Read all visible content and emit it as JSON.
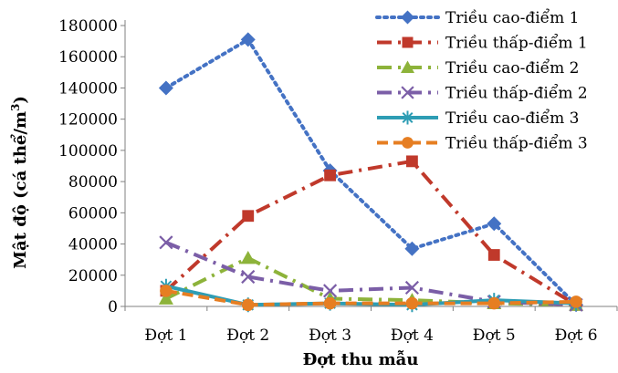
{
  "chart_data": {
    "type": "line",
    "xlabel": "Đợt thu mẫu",
    "ylabel_main": "Mật độ (cá thể/m",
    "ylabel_sup": "3",
    "ylabel_end": ")",
    "categories": [
      "Đợt 1",
      "Đợt 2",
      "Đợt 3",
      "Đợt 4",
      "Đợt 5",
      "Đợt 6"
    ],
    "ylim": [
      0,
      180000
    ],
    "yticks": [
      "0",
      "20000",
      "40000",
      "60000",
      "80000",
      "100000",
      "120000",
      "140000",
      "160000",
      "180000"
    ],
    "legend_position": "top-right",
    "series": [
      {
        "name": "Triều cao-điểm 1",
        "color": "#4472C4",
        "dash": "3,5",
        "marker": "diamond",
        "values": [
          140000,
          171000,
          87000,
          37000,
          53000,
          1000
        ]
      },
      {
        "name": "Triều thấp-điểm 1",
        "color": "#C0392B",
        "dash": "16,7,3,7",
        "marker": "square",
        "values": [
          10000,
          58000,
          84000,
          93000,
          33000,
          1000
        ]
      },
      {
        "name": "Triều cao-điểm 2",
        "color": "#8DB33A",
        "dash": "16,7,3,7",
        "marker": "triangle",
        "values": [
          5000,
          31000,
          5000,
          4000,
          2000,
          1000
        ]
      },
      {
        "name": "Triều thấp-điểm 2",
        "color": "#7B5EA7",
        "dash": "16,7,3,7",
        "marker": "x",
        "values": [
          41000,
          19000,
          10000,
          12000,
          3000,
          1000
        ]
      },
      {
        "name": "Triều cao-điểm 3",
        "color": "#2E9DB4",
        "dash": "",
        "marker": "star",
        "values": [
          13000,
          1000,
          2000,
          1000,
          4000,
          2000
        ]
      },
      {
        "name": "Triều thấp-điểm 3",
        "color": "#E67E22",
        "dash": "12,6",
        "marker": "circle",
        "values": [
          10000,
          1000,
          2000,
          2000,
          2000,
          3000
        ]
      }
    ]
  }
}
